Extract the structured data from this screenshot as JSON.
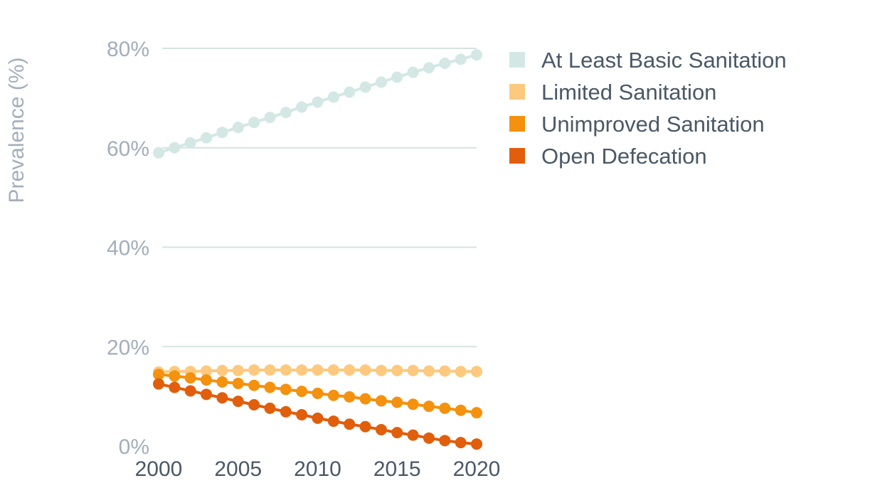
{
  "chart_data": {
    "type": "line",
    "ylabel": "Prevalence (%)",
    "xlabel": "",
    "ylim": [
      0,
      80
    ],
    "y_ticks": [
      {
        "value": 0,
        "label": "0%"
      },
      {
        "value": 20,
        "label": "20%"
      },
      {
        "value": 40,
        "label": "40%"
      },
      {
        "value": 60,
        "label": "60%"
      },
      {
        "value": 80,
        "label": "80%"
      }
    ],
    "xlim": [
      2000,
      2020
    ],
    "x_ticks": [
      {
        "value": 2000,
        "label": "2000"
      },
      {
        "value": 2005,
        "label": "2005"
      },
      {
        "value": 2010,
        "label": "2010"
      },
      {
        "value": 2015,
        "label": "2015"
      },
      {
        "value": 2020,
        "label": "2020"
      }
    ],
    "grid": true,
    "legend_position": "top-right",
    "x": [
      2000,
      2001,
      2002,
      2003,
      2004,
      2005,
      2006,
      2007,
      2008,
      2009,
      2010,
      2011,
      2012,
      2013,
      2014,
      2015,
      2016,
      2017,
      2018,
      2019,
      2020
    ],
    "series": [
      {
        "name": "At Least Basic Sanitation",
        "color": "#d3e8e4",
        "values": [
          59.0,
          60.0,
          61.0,
          62.0,
          63.1,
          64.1,
          65.1,
          66.1,
          67.1,
          68.2,
          69.2,
          70.2,
          71.2,
          72.2,
          73.2,
          74.2,
          75.2,
          76.1,
          77.0,
          77.8,
          78.7
        ]
      },
      {
        "name": "Limited Sanitation",
        "color": "#fcc97f",
        "values": [
          14.9,
          15.0,
          15.0,
          15.1,
          15.2,
          15.2,
          15.3,
          15.3,
          15.3,
          15.3,
          15.3,
          15.3,
          15.3,
          15.3,
          15.2,
          15.2,
          15.2,
          15.1,
          15.1,
          15.0,
          15.0
        ]
      },
      {
        "name": "Unimproved Sanitation",
        "color": "#f4910e",
        "values": [
          14.4,
          14.1,
          13.7,
          13.3,
          12.9,
          12.6,
          12.2,
          11.8,
          11.4,
          11.0,
          10.6,
          10.2,
          9.9,
          9.5,
          9.1,
          8.8,
          8.4,
          8.0,
          7.6,
          7.2,
          6.7
        ]
      },
      {
        "name": "Open Defecation",
        "color": "#e05e0c",
        "values": [
          12.5,
          11.8,
          11.1,
          10.4,
          9.7,
          9.0,
          8.3,
          7.6,
          6.9,
          6.3,
          5.6,
          5.0,
          4.4,
          3.9,
          3.3,
          2.7,
          2.2,
          1.6,
          1.1,
          0.7,
          0.4
        ]
      }
    ]
  }
}
